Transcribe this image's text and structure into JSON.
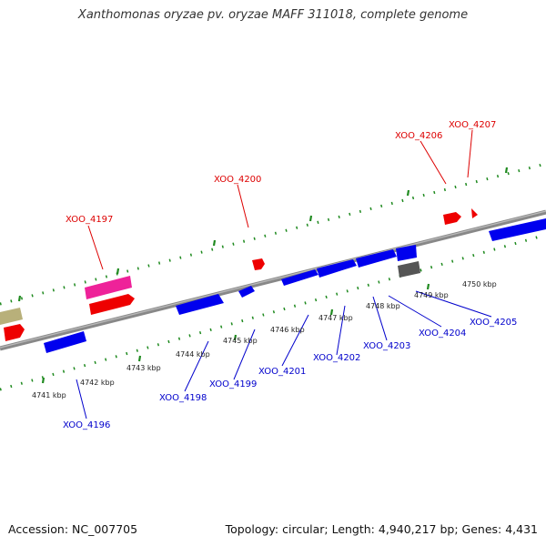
{
  "title": "Xanthomonas oryzae pv. oryzae MAFF 311018, complete genome",
  "footer": {
    "accession": "Accession: NC_007705",
    "topology": "Topology: circular; Length: 4,940,217 bp; Genes: 4,431"
  },
  "colors": {
    "backbone": "#888888",
    "tick": "#1f8a1f",
    "forward_gene": "#ff0000",
    "reverse_gene": "#0000ee",
    "pseudo_gene": "#ee2299",
    "rna_gene": "#555555",
    "other_gene": "#b8b07a",
    "forward_label": "#dd0000",
    "reverse_label": "#0000cc"
  },
  "kbp_labels": [
    "4741 kbp",
    "4742 kbp",
    "4743 kbp",
    "4744 kbp",
    "4745 kbp",
    "4746 kbp",
    "4747 kbp",
    "4748 kbp",
    "4749 kbp",
    "4750 kbp"
  ],
  "forward_genes": [
    "XOO_4197",
    "XOO_4200",
    "XOO_4206",
    "XOO_4207"
  ],
  "reverse_genes": [
    "XOO_4196",
    "XOO_4198",
    "XOO_4199",
    "XOO_4201",
    "XOO_4202",
    "XOO_4203",
    "XOO_4204",
    "XOO_4205"
  ]
}
